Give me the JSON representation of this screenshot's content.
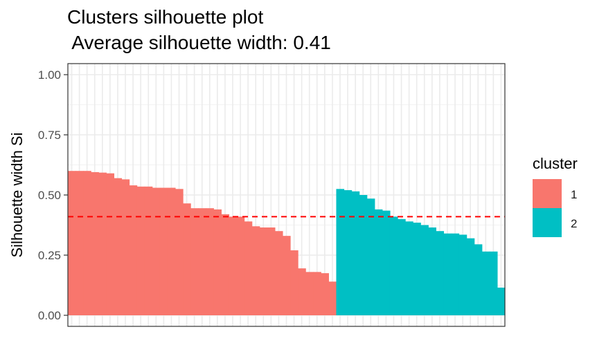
{
  "chart_data": {
    "type": "bar",
    "title_line1": "Clusters silhouette plot",
    "title_line2": " Average silhouette width: 0.41",
    "xlabel": "",
    "ylabel": "Silhouette width Si",
    "ylim": [
      0,
      1
    ],
    "yticks": [
      "0.00",
      "0.25",
      "0.50",
      "0.75",
      "1.00"
    ],
    "average_silhouette_width": 0.41,
    "average_line_color": "#ff0000",
    "grid": true,
    "legend": {
      "title": "cluster",
      "placement": "right",
      "items": [
        {
          "label": "1",
          "color": "#f8766d"
        },
        {
          "label": "2",
          "color": "#00bfc4"
        }
      ]
    },
    "series": [
      {
        "name": "1",
        "color": "#f8766d",
        "values": [
          0.6,
          0.6,
          0.6,
          0.595,
          0.593,
          0.59,
          0.57,
          0.565,
          0.54,
          0.535,
          0.535,
          0.53,
          0.53,
          0.53,
          0.525,
          0.465,
          0.445,
          0.445,
          0.445,
          0.44,
          0.42,
          0.41,
          0.41,
          0.39,
          0.37,
          0.365,
          0.365,
          0.35,
          0.33,
          0.27,
          0.195,
          0.18,
          0.18,
          0.175,
          0.14
        ]
      },
      {
        "name": "2",
        "color": "#00bfc4",
        "values": [
          0.525,
          0.52,
          0.515,
          0.5,
          0.485,
          0.44,
          0.435,
          0.41,
          0.4,
          0.39,
          0.385,
          0.375,
          0.365,
          0.35,
          0.34,
          0.34,
          0.335,
          0.32,
          0.295,
          0.265,
          0.265,
          0.115
        ]
      }
    ]
  }
}
